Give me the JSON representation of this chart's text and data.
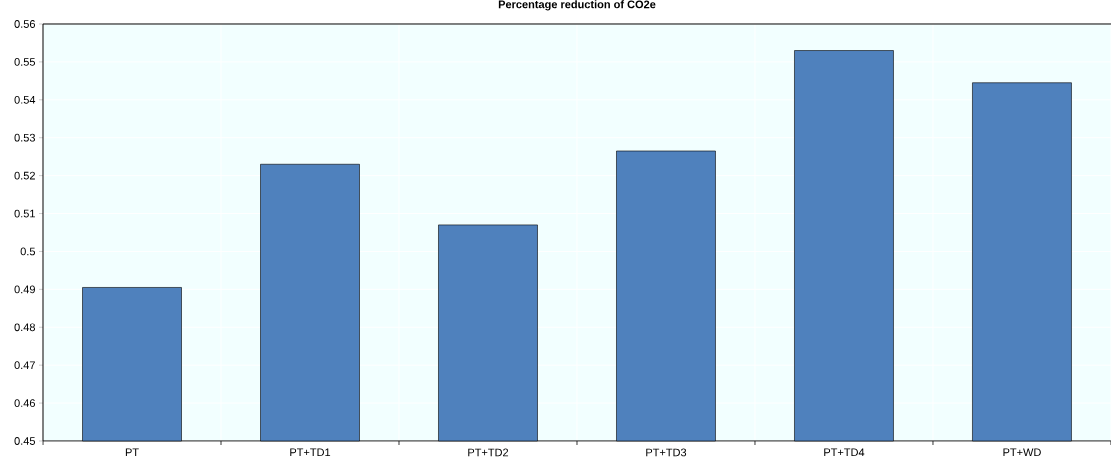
{
  "chart_data": {
    "type": "bar",
    "title": "Percentage reduction of CO2e",
    "categories": [
      "PT",
      "PT+TD1",
      "PT+TD2",
      "PT+TD3",
      "PT+TD4",
      "PT+WD"
    ],
    "values": [
      0.4905,
      0.523,
      0.507,
      0.5265,
      0.553,
      0.5445
    ],
    "color": "#4f81bd",
    "ylim": [
      0.45,
      0.56
    ],
    "yticks": [
      0.45,
      0.46,
      0.47,
      0.48,
      0.49,
      0.5,
      0.51,
      0.52,
      0.53,
      0.54,
      0.55,
      0.56
    ],
    "grid": true
  }
}
